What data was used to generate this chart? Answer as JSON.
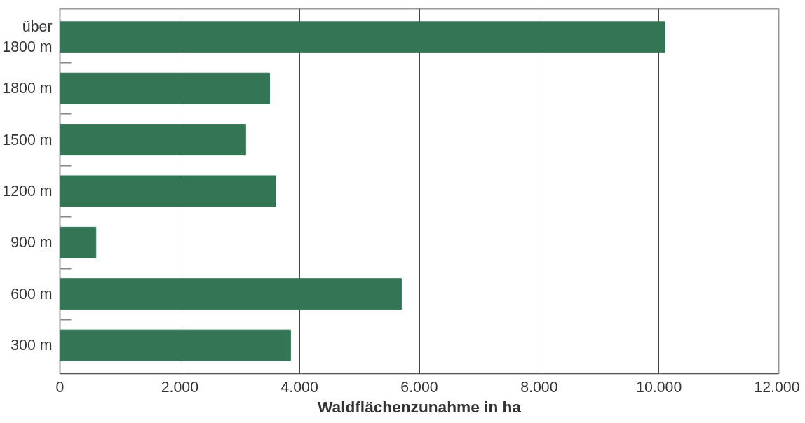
{
  "chart_data": {
    "type": "bar",
    "orientation": "horizontal",
    "categories": [
      "über\n1800 m",
      "1800 m",
      "1500 m",
      "1200 m",
      "900 m",
      "600 m",
      "300 m"
    ],
    "values": [
      10100,
      3500,
      3100,
      3600,
      600,
      5700,
      3850
    ],
    "color": "#347556",
    "xlabel": "Waldflächenzunahme in ha",
    "xlim": [
      0,
      12000
    ],
    "xticks": [
      0,
      {
        "value": 2000,
        "label": "2.000"
      },
      {
        "value": 4000,
        "label": "4.000"
      },
      {
        "value": 6000,
        "label": "6.000"
      },
      {
        "value": 8000,
        "label": "8.000"
      },
      {
        "value": 10000,
        "label": "10.000"
      },
      {
        "value": 12000,
        "label": "12.000"
      }
    ],
    "grid": "x"
  }
}
